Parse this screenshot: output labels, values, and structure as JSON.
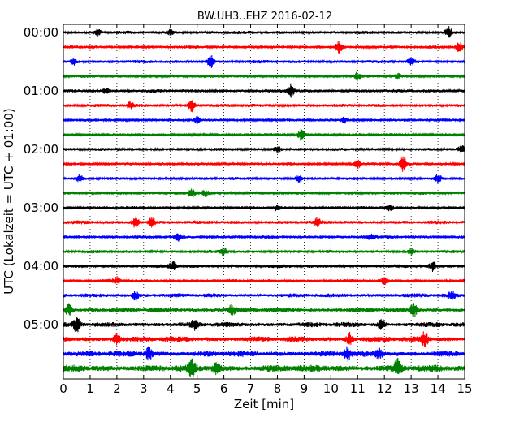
{
  "chart_data": {
    "type": "line",
    "title": "BW.UH3..EHZ 2016-02-12",
    "xlabel": "Zeit  [min]",
    "ylabel": "UTC (Lokalzeit = UTC + 01:00)",
    "xlim": [
      0,
      15
    ],
    "x_ticks": [
      "0",
      "1",
      "2",
      "3",
      "4",
      "5",
      "6",
      "7",
      "8",
      "9",
      "10",
      "11",
      "12",
      "13",
      "14",
      "15"
    ],
    "y_ticks": [
      "00:00",
      "01:00",
      "02:00",
      "03:00",
      "04:00",
      "05:00"
    ],
    "grid": "vertical dotted",
    "trace_colors": [
      "#000000",
      "#ff0000",
      "#0000ff",
      "#008000"
    ],
    "traces_count": 24,
    "trace_interval_minutes": 15,
    "traces": [
      {
        "start": "00:00",
        "color": "#000000",
        "amplitude": 0.22,
        "events": [
          {
            "t": 1.3,
            "a": 0.35
          },
          {
            "t": 4.0,
            "a": 0.3
          },
          {
            "t": 14.4,
            "a": 0.65
          }
        ]
      },
      {
        "start": "00:15",
        "color": "#ff0000",
        "amplitude": 0.2,
        "events": [
          {
            "t": 10.3,
            "a": 0.7
          },
          {
            "t": 14.8,
            "a": 0.55
          }
        ]
      },
      {
        "start": "00:30",
        "color": "#0000ff",
        "amplitude": 0.22,
        "events": [
          {
            "t": 0.4,
            "a": 0.4
          },
          {
            "t": 5.5,
            "a": 0.8
          },
          {
            "t": 13.0,
            "a": 0.45
          }
        ]
      },
      {
        "start": "00:45",
        "color": "#008000",
        "amplitude": 0.2,
        "events": [
          {
            "t": 11.0,
            "a": 0.45
          },
          {
            "t": 12.5,
            "a": 0.35
          }
        ]
      },
      {
        "start": "01:00",
        "color": "#000000",
        "amplitude": 0.22,
        "events": [
          {
            "t": 1.6,
            "a": 0.4
          },
          {
            "t": 8.5,
            "a": 0.8
          }
        ]
      },
      {
        "start": "01:15",
        "color": "#ff0000",
        "amplitude": 0.22,
        "events": [
          {
            "t": 2.5,
            "a": 0.45
          },
          {
            "t": 4.8,
            "a": 0.8
          }
        ]
      },
      {
        "start": "01:30",
        "color": "#0000ff",
        "amplitude": 0.2,
        "events": [
          {
            "t": 5.0,
            "a": 0.35
          },
          {
            "t": 10.5,
            "a": 0.35
          }
        ]
      },
      {
        "start": "01:45",
        "color": "#008000",
        "amplitude": 0.2,
        "events": [
          {
            "t": 8.9,
            "a": 0.75
          }
        ]
      },
      {
        "start": "02:00",
        "color": "#000000",
        "amplitude": 0.2,
        "events": [
          {
            "t": 8.0,
            "a": 0.45
          },
          {
            "t": 14.9,
            "a": 0.45
          }
        ]
      },
      {
        "start": "02:15",
        "color": "#ff0000",
        "amplitude": 0.2,
        "events": [
          {
            "t": 11.0,
            "a": 0.5
          },
          {
            "t": 12.7,
            "a": 0.85
          }
        ]
      },
      {
        "start": "02:30",
        "color": "#0000ff",
        "amplitude": 0.2,
        "events": [
          {
            "t": 0.6,
            "a": 0.4
          },
          {
            "t": 8.8,
            "a": 0.55
          },
          {
            "t": 14.0,
            "a": 0.5
          }
        ]
      },
      {
        "start": "02:45",
        "color": "#008000",
        "amplitude": 0.2,
        "events": [
          {
            "t": 4.8,
            "a": 0.55
          },
          {
            "t": 5.3,
            "a": 0.4
          }
        ]
      },
      {
        "start": "03:00",
        "color": "#000000",
        "amplitude": 0.22,
        "events": [
          {
            "t": 12.2,
            "a": 0.45
          },
          {
            "t": 8.0,
            "a": 0.35
          }
        ]
      },
      {
        "start": "03:15",
        "color": "#ff0000",
        "amplitude": 0.25,
        "events": [
          {
            "t": 2.7,
            "a": 0.7
          },
          {
            "t": 3.3,
            "a": 0.65
          },
          {
            "t": 9.5,
            "a": 0.45
          }
        ]
      },
      {
        "start": "03:30",
        "color": "#0000ff",
        "amplitude": 0.22,
        "events": [
          {
            "t": 4.3,
            "a": 0.4
          },
          {
            "t": 11.5,
            "a": 0.4
          }
        ]
      },
      {
        "start": "03:45",
        "color": "#008000",
        "amplitude": 0.22,
        "events": [
          {
            "t": 6.0,
            "a": 0.45
          },
          {
            "t": 13.0,
            "a": 0.4
          }
        ]
      },
      {
        "start": "04:00",
        "color": "#000000",
        "amplitude": 0.24,
        "events": [
          {
            "t": 4.1,
            "a": 0.55
          },
          {
            "t": 13.8,
            "a": 0.5
          }
        ]
      },
      {
        "start": "04:15",
        "color": "#ff0000",
        "amplitude": 0.24,
        "events": [
          {
            "t": 2.0,
            "a": 0.4
          },
          {
            "t": 12.0,
            "a": 0.35
          }
        ]
      },
      {
        "start": "04:30",
        "color": "#0000ff",
        "amplitude": 0.28,
        "events": [
          {
            "t": 2.7,
            "a": 0.55
          },
          {
            "t": 14.5,
            "a": 0.5
          }
        ]
      },
      {
        "start": "04:45",
        "color": "#008000",
        "amplitude": 0.34,
        "events": [
          {
            "t": 0.2,
            "a": 0.65
          },
          {
            "t": 6.3,
            "a": 0.55
          },
          {
            "t": 13.1,
            "a": 0.85
          }
        ]
      },
      {
        "start": "05:00",
        "color": "#000000",
        "amplitude": 0.34,
        "events": [
          {
            "t": 0.5,
            "a": 0.75
          },
          {
            "t": 4.9,
            "a": 0.5
          },
          {
            "t": 11.9,
            "a": 0.6
          }
        ]
      },
      {
        "start": "05:15",
        "color": "#ff0000",
        "amplitude": 0.38,
        "events": [
          {
            "t": 2.0,
            "a": 0.65
          },
          {
            "t": 10.7,
            "a": 0.7
          },
          {
            "t": 13.5,
            "a": 0.9
          }
        ]
      },
      {
        "start": "05:30",
        "color": "#0000ff",
        "amplitude": 0.4,
        "events": [
          {
            "t": 3.2,
            "a": 0.7
          },
          {
            "t": 10.6,
            "a": 0.8
          },
          {
            "t": 11.8,
            "a": 0.6
          }
        ]
      },
      {
        "start": "05:45",
        "color": "#008000",
        "amplitude": 0.48,
        "events": [
          {
            "t": 4.8,
            "a": 0.9
          },
          {
            "t": 5.7,
            "a": 0.7
          },
          {
            "t": 12.5,
            "a": 0.95
          }
        ]
      }
    ]
  }
}
